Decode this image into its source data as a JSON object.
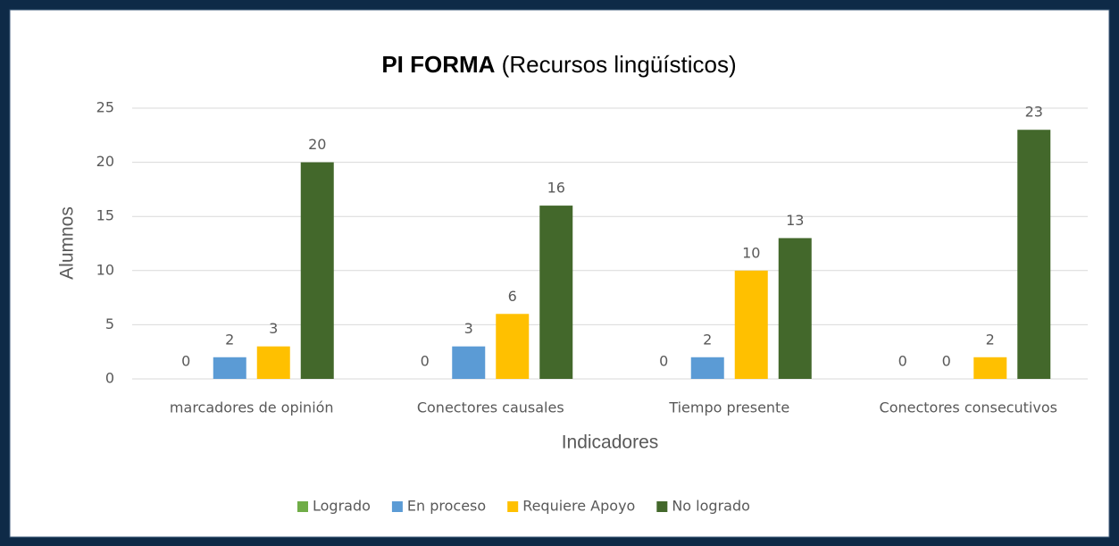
{
  "chart_data": {
    "type": "bar",
    "title": "PI FORMA",
    "subtitle": "(Recursos lingüísticos)",
    "x_label": "Indicadores",
    "y_label": "Alumnos",
    "categories": [
      "marcadores de opinión",
      "Conectores causales",
      "Tiempo presente",
      "Conectores consecutivos"
    ],
    "series": [
      {
        "name": "Logrado",
        "color": "#70ad47",
        "values": [
          0,
          0,
          0,
          0
        ]
      },
      {
        "name": "En proceso",
        "color": "#5b9bd5",
        "values": [
          2,
          3,
          2,
          0
        ]
      },
      {
        "name": "Requiere Apoyo",
        "color": "#ffc000",
        "values": [
          3,
          6,
          10,
          2
        ]
      },
      {
        "name": "No logrado",
        "color": "#43682b",
        "values": [
          20,
          16,
          13,
          23
        ]
      }
    ],
    "ylim": [
      0,
      25
    ],
    "yticks": [
      0,
      5,
      10,
      15,
      20,
      25
    ],
    "grid": true,
    "legend": "bottom"
  }
}
